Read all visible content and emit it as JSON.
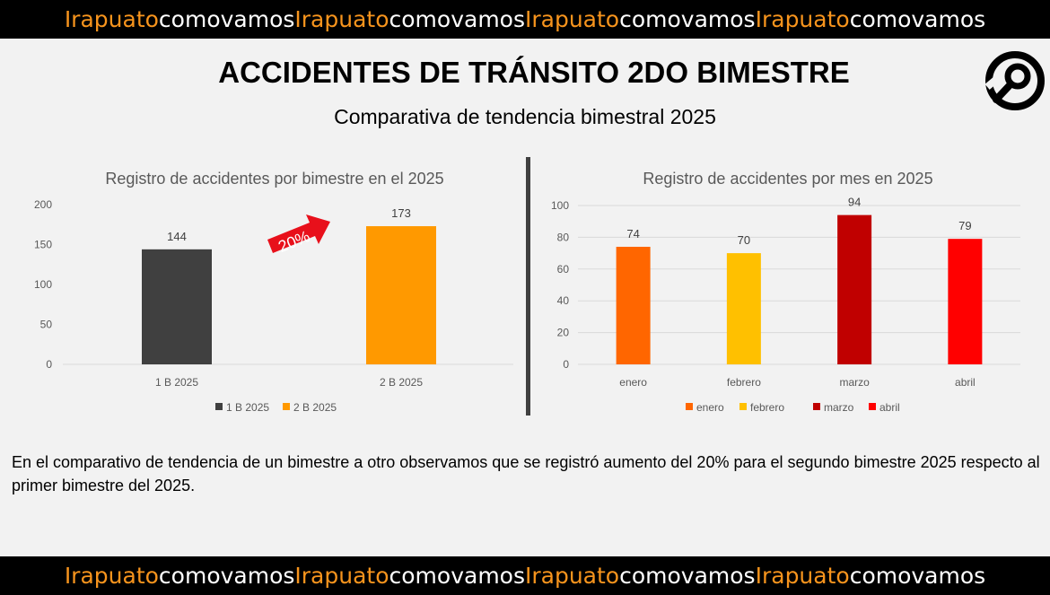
{
  "banner": {
    "segments": [
      {
        "text": "Irapuato",
        "color": "#f7941d"
      },
      {
        "text": "comovamos",
        "color": "#ffffff"
      },
      {
        "text": "Irapuato",
        "color": "#f7941d"
      },
      {
        "text": "comovamos",
        "color": "#ffffff"
      },
      {
        "text": "Irapuato",
        "color": "#f7941d"
      },
      {
        "text": "comovamos",
        "color": "#ffffff"
      },
      {
        "text": "Irapuato",
        "color": "#f7941d"
      },
      {
        "text": "comovamos",
        "color": "#ffffff"
      }
    ]
  },
  "header": {
    "title": "ACCIDENTES DE TRÁNSITO 2DO BIMESTRE",
    "subtitle": "Comparativa de tendencia bimestral 2025"
  },
  "logo_icon": "search-circle-logo-icon",
  "chart_data": [
    {
      "type": "bar",
      "title": "Registro de accidentes por bimestre en el 2025",
      "categories": [
        "1 B 2025",
        "2 B 2025"
      ],
      "values": [
        144,
        173
      ],
      "colors": [
        "#404040",
        "#ff9900"
      ],
      "ylim": [
        0,
        200
      ],
      "yticks": [
        0,
        50,
        100,
        150,
        200
      ],
      "legend": [
        "1 B 2025",
        "2 B 2025"
      ],
      "legend_position": "bottom",
      "annotation": {
        "text": "20%",
        "color": "#e8101b"
      }
    },
    {
      "type": "bar",
      "title": "Registro de accidentes por mes en 2025",
      "categories": [
        "enero",
        "febrero",
        "marzo",
        "abril"
      ],
      "values": [
        74,
        70,
        94,
        79
      ],
      "colors": [
        "#ff6600",
        "#ffc000",
        "#c00000",
        "#ff0000"
      ],
      "ylim": [
        0,
        100
      ],
      "yticks": [
        0,
        20,
        40,
        60,
        80,
        100
      ],
      "grid": true,
      "legend": [
        "enero",
        "febrero",
        "marzo",
        "abril"
      ],
      "legend_position": "bottom"
    }
  ],
  "body_text": "En el comparativo de tendencia de un bimestre a otro observamos que se registró aumento del 20% para el segundo bimestre 2025 respecto al primer bimestre del 2025."
}
